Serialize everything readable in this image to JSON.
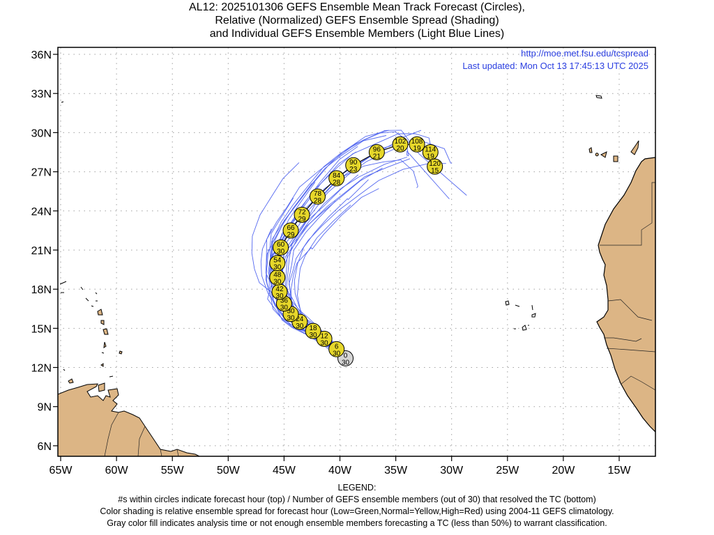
{
  "title": {
    "line1": "AL12: 2025101306 GEFS Ensemble Mean Track Forecast (Circles),",
    "line2": "Relative (Normalized) GEFS Ensemble Spread (Shading)",
    "line3": "and Individual GEFS Ensemble Members (Light Blue Lines)"
  },
  "info": {
    "url": "http://moe.met.fsu.edu/tcspread",
    "updated": "Last updated: Mon Oct 13 17:45:13 UTC 2025"
  },
  "axes": {
    "lon_ticks": [
      -65,
      -60,
      -55,
      -50,
      -45,
      -40,
      -35,
      -30,
      -25,
      -20,
      -15
    ],
    "lon_labels": [
      "65W",
      "60W",
      "55W",
      "50W",
      "45W",
      "40W",
      "35W",
      "30W",
      "25W",
      "20W",
      "15W"
    ],
    "lat_ticks": [
      36,
      33,
      30,
      27,
      24,
      21,
      18,
      15,
      12,
      9,
      6
    ],
    "lat_labels": [
      "36N",
      "33N",
      "30N",
      "27N",
      "24N",
      "21N",
      "18N",
      "15N",
      "12N",
      "9N",
      "6N"
    ],
    "lon_range": [
      -65.25,
      -11.75
    ],
    "lat_range": [
      5.2,
      36.5
    ]
  },
  "colors": {
    "land": "#dcb585",
    "coast": "#000000",
    "grid": "#a0a0a0",
    "member_line": "#5468f0",
    "mean_line": "#000000",
    "normal_spread": "#e6d72a",
    "analysis_gray": "#d4d4d4",
    "info_text": "#2a3ee0"
  },
  "track": [
    {
      "hour": "0",
      "members": "30",
      "lon": -39.5,
      "lat": 12.7,
      "fill": "gray"
    },
    {
      "hour": "6",
      "members": "30",
      "lon": -40.3,
      "lat": 13.4,
      "fill": "normal"
    },
    {
      "hour": "12",
      "members": "30",
      "lon": -41.4,
      "lat": 14.2,
      "fill": "normal"
    },
    {
      "hour": "18",
      "members": "30",
      "lon": -42.4,
      "lat": 14.8,
      "fill": "normal"
    },
    {
      "hour": "24",
      "members": "30",
      "lon": -43.6,
      "lat": 15.5,
      "fill": "normal"
    },
    {
      "hour": "30",
      "members": "30",
      "lon": -44.4,
      "lat": 16.1,
      "fill": "normal"
    },
    {
      "hour": "36",
      "members": "30",
      "lon": -45.0,
      "lat": 16.9,
      "fill": "normal"
    },
    {
      "hour": "42",
      "members": "30",
      "lon": -45.4,
      "lat": 17.8,
      "fill": "normal"
    },
    {
      "hour": "48",
      "members": "30",
      "lon": -45.6,
      "lat": 18.9,
      "fill": "normal"
    },
    {
      "hour": "54",
      "members": "30",
      "lon": -45.6,
      "lat": 20.0,
      "fill": "normal"
    },
    {
      "hour": "60",
      "members": "30",
      "lon": -45.3,
      "lat": 21.2,
      "fill": "normal"
    },
    {
      "hour": "66",
      "members": "29",
      "lon": -44.4,
      "lat": 22.5,
      "fill": "normal"
    },
    {
      "hour": "72",
      "members": "29",
      "lon": -43.4,
      "lat": 23.7,
      "fill": "normal"
    },
    {
      "hour": "78",
      "members": "28",
      "lon": -42.0,
      "lat": 25.1,
      "fill": "normal"
    },
    {
      "hour": "84",
      "members": "28",
      "lon": -40.3,
      "lat": 26.5,
      "fill": "normal"
    },
    {
      "hour": "90",
      "members": "23",
      "lon": -38.8,
      "lat": 27.5,
      "fill": "normal"
    },
    {
      "hour": "96",
      "members": "21",
      "lon": -36.7,
      "lat": 28.5,
      "fill": "normal"
    },
    {
      "hour": "102",
      "members": "20",
      "lon": -34.6,
      "lat": 29.1,
      "fill": "normal"
    },
    {
      "hour": "108",
      "members": "19",
      "lon": -33.1,
      "lat": 29.1,
      "fill": "normal"
    },
    {
      "hour": "114",
      "members": "19",
      "lon": -31.9,
      "lat": 28.5,
      "fill": "normal"
    },
    {
      "hour": "120",
      "members": "15",
      "lon": -31.5,
      "lat": 27.4,
      "fill": "normal"
    }
  ],
  "legend": {
    "heading": "LEGEND:",
    "line1": "#s within circles indicate forecast hour (top) / Number of GEFS ensemble members (out of 30) that resolved the TC (bottom)",
    "line2": "Color shading is relative ensemble spread for forecast hour (Low=Green,Normal=Yellow,High=Red) using 2004-11 GEFS climatology.",
    "line3": "Gray color fill indicates analysis time or not enough ensemble members forecasting a TC (less than 50%) to warrant classification."
  }
}
